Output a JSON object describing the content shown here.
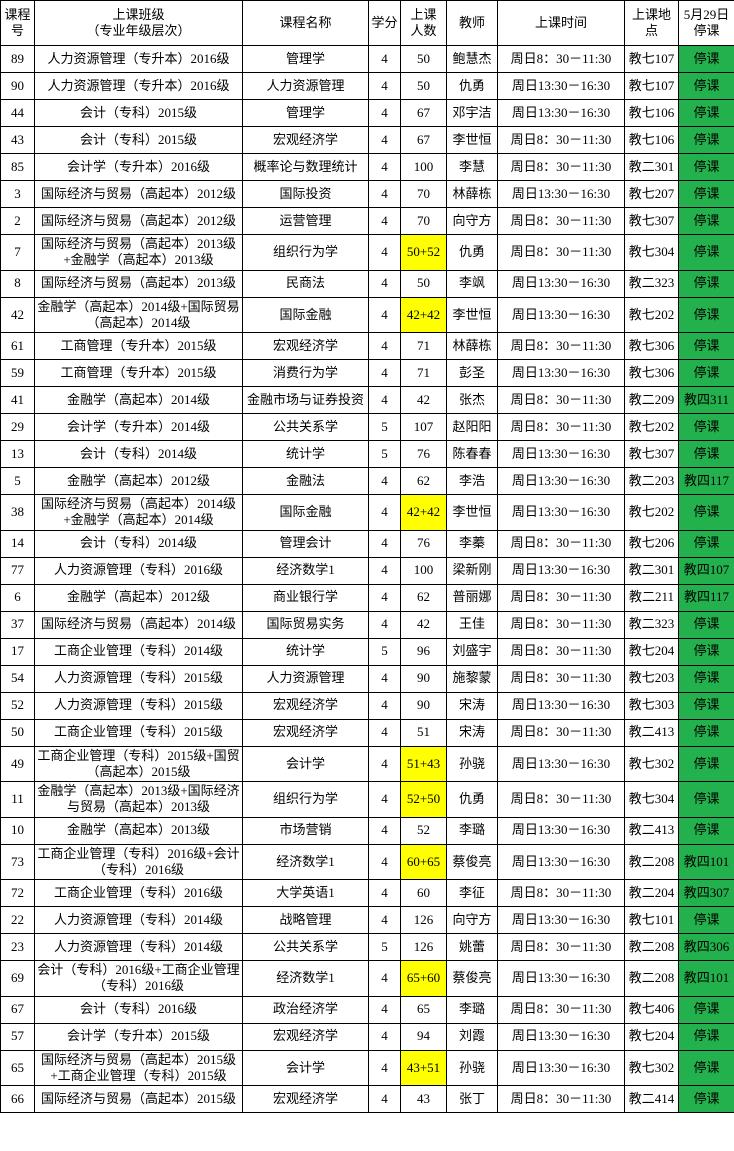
{
  "colors": {
    "suspend_green": "#22b14c",
    "highlight_yellow": "#ffff00",
    "border": "#000000"
  },
  "table": {
    "headers": [
      "课程\n号",
      "上课班级\n（专业年级层次）",
      "课程名称",
      "学分",
      "上课\n人数",
      "教师",
      "上课时间",
      "上课地\n点",
      "5月29日\n停课"
    ],
    "rows": [
      {
        "course_no": "89",
        "class_name": "人力资源管理（专升本）2016级",
        "course_name": "管理学",
        "credits": "4",
        "students": "50",
        "students_highlight": false,
        "teacher": "鲍慧杰",
        "time": "周日8：30－11:30",
        "location": "教七107",
        "may29": "停课"
      },
      {
        "course_no": "90",
        "class_name": "人力资源管理（专升本）2016级",
        "course_name": "人力资源管理",
        "credits": "4",
        "students": "50",
        "students_highlight": false,
        "teacher": "仇勇",
        "time": "周日13:30－16:30",
        "location": "教七107",
        "may29": "停课"
      },
      {
        "course_no": "44",
        "class_name": "会计（专科）2015级",
        "course_name": "管理学",
        "credits": "4",
        "students": "67",
        "students_highlight": false,
        "teacher": "邓宇洁",
        "time": "周日13:30－16:30",
        "location": "教七106",
        "may29": "停课"
      },
      {
        "course_no": "43",
        "class_name": "会计（专科）2015级",
        "course_name": "宏观经济学",
        "credits": "4",
        "students": "67",
        "students_highlight": false,
        "teacher": "李世恒",
        "time": "周日8：30－11:30",
        "location": "教七106",
        "may29": "停课"
      },
      {
        "course_no": "85",
        "class_name": "会计学（专升本）2016级",
        "course_name": "概率论与数理统计",
        "credits": "4",
        "students": "100",
        "students_highlight": false,
        "teacher": "李慧",
        "time": "周日8：30－11:30",
        "location": "教二301",
        "may29": "停课"
      },
      {
        "course_no": "3",
        "class_name": "国际经济与贸易（高起本）2012级",
        "course_name": "国际投资",
        "credits": "4",
        "students": "70",
        "students_highlight": false,
        "teacher": "林薛栋",
        "time": "周日13:30－16:30",
        "location": "教七207",
        "may29": "停课"
      },
      {
        "course_no": "2",
        "class_name": "国际经济与贸易（高起本）2012级",
        "course_name": "运营管理",
        "credits": "4",
        "students": "70",
        "students_highlight": false,
        "teacher": "向守方",
        "time": "周日8：30－11:30",
        "location": "教七307",
        "may29": "停课"
      },
      {
        "course_no": "7",
        "class_name": "国际经济与贸易（高起本）2013级+金融学（高起本）2013级",
        "course_name": "组织行为学",
        "credits": "4",
        "students": "50+52",
        "students_highlight": true,
        "teacher": "仇勇",
        "time": "周日8：30－11:30",
        "location": "教七304",
        "may29": "停课"
      },
      {
        "course_no": "8",
        "class_name": "国际经济与贸易（高起本）2013级",
        "course_name": "民商法",
        "credits": "4",
        "students": "50",
        "students_highlight": false,
        "teacher": "李飒",
        "time": "周日13:30－16:30",
        "location": "教二323",
        "may29": "停课"
      },
      {
        "course_no": "42",
        "class_name": "金融学（高起本）2014级+国际贸易（高起本）2014级",
        "course_name": "国际金融",
        "credits": "4",
        "students": "42+42",
        "students_highlight": true,
        "teacher": "李世恒",
        "time": "周日13:30－16:30",
        "location": "教七202",
        "may29": "停课"
      },
      {
        "course_no": "61",
        "class_name": "工商管理（专升本）2015级",
        "course_name": "宏观经济学",
        "credits": "4",
        "students": "71",
        "students_highlight": false,
        "teacher": "林薛栋",
        "time": "周日8：30－11:30",
        "location": "教七306",
        "may29": "停课"
      },
      {
        "course_no": "59",
        "class_name": "工商管理（专升本）2015级",
        "course_name": "消费行为学",
        "credits": "4",
        "students": "71",
        "students_highlight": false,
        "teacher": "彭圣",
        "time": "周日13:30－16:30",
        "location": "教七306",
        "may29": "停课"
      },
      {
        "course_no": "41",
        "class_name": "金融学（高起本）2014级",
        "course_name": "金融市场与证券投资",
        "credits": "4",
        "students": "42",
        "students_highlight": false,
        "teacher": "张杰",
        "time": "周日8：30－11:30",
        "location": "教二209",
        "may29": "教四311"
      },
      {
        "course_no": "29",
        "class_name": "会计学（专升本）2014级",
        "course_name": "公共关系学",
        "credits": "5",
        "students": "107",
        "students_highlight": false,
        "teacher": "赵阳阳",
        "time": "周日8：30－11:30",
        "location": "教七202",
        "may29": "停课"
      },
      {
        "course_no": "13",
        "class_name": "会计（专科）2014级",
        "course_name": "统计学",
        "credits": "5",
        "students": "76",
        "students_highlight": false,
        "teacher": "陈春春",
        "time": "周日13:30－16:30",
        "location": "教七307",
        "may29": "停课"
      },
      {
        "course_no": "5",
        "class_name": "金融学（高起本）2012级",
        "course_name": "金融法",
        "credits": "4",
        "students": "62",
        "students_highlight": false,
        "teacher": "李浩",
        "time": "周日13:30－16:30",
        "location": "教二203",
        "may29": "教四117"
      },
      {
        "course_no": "38",
        "class_name": "国际经济与贸易（高起本）2014级+金融学（高起本）2014级",
        "course_name": "国际金融",
        "credits": "4",
        "students": "42+42",
        "students_highlight": true,
        "teacher": "李世恒",
        "time": "周日13:30－16:30",
        "location": "教七202",
        "may29": "停课"
      },
      {
        "course_no": "14",
        "class_name": "会计（专科）2014级",
        "course_name": "管理会计",
        "credits": "4",
        "students": "76",
        "students_highlight": false,
        "teacher": "李蓁",
        "time": "周日8：30－11:30",
        "location": "教七206",
        "may29": "停课"
      },
      {
        "course_no": "77",
        "class_name": "人力资源管理（专科）2016级",
        "course_name": "经济数学1",
        "credits": "4",
        "students": "100",
        "students_highlight": false,
        "teacher": "梁新刚",
        "time": "周日13:30－16:30",
        "location": "教二301",
        "may29": "教四107"
      },
      {
        "course_no": "6",
        "class_name": "金融学（高起本）2012级",
        "course_name": "商业银行学",
        "credits": "4",
        "students": "62",
        "students_highlight": false,
        "teacher": "普丽娜",
        "time": "周日8：30－11:30",
        "location": "教二211",
        "may29": "教四117"
      },
      {
        "course_no": "37",
        "class_name": "国际经济与贸易（高起本）2014级",
        "course_name": "国际贸易实务",
        "credits": "4",
        "students": "42",
        "students_highlight": false,
        "teacher": "王佳",
        "time": "周日8：30－11:30",
        "location": "教二323",
        "may29": "停课"
      },
      {
        "course_no": "17",
        "class_name": "工商企业管理（专科）2014级",
        "course_name": "统计学",
        "credits": "5",
        "students": "96",
        "students_highlight": false,
        "teacher": "刘盛宇",
        "time": "周日8：30－11:30",
        "location": "教七204",
        "may29": "停课"
      },
      {
        "course_no": "54",
        "class_name": "人力资源管理（专科）2015级",
        "course_name": "人力资源管理",
        "credits": "4",
        "students": "90",
        "students_highlight": false,
        "teacher": "施黎蒙",
        "time": "周日8：30－11:30",
        "location": "教七203",
        "may29": "停课"
      },
      {
        "course_no": "52",
        "class_name": "人力资源管理（专科）2015级",
        "course_name": "宏观经济学",
        "credits": "4",
        "students": "90",
        "students_highlight": false,
        "teacher": "宋涛",
        "time": "周日13:30－16:30",
        "location": "教七303",
        "may29": "停课"
      },
      {
        "course_no": "50",
        "class_name": "工商企业管理（专科）2015级",
        "course_name": "宏观经济学",
        "credits": "4",
        "students": "51",
        "students_highlight": false,
        "teacher": "宋涛",
        "time": "周日8：30－11:30",
        "location": "教二413",
        "may29": "停课"
      },
      {
        "course_no": "49",
        "class_name": "工商企业管理（专科）2015级+国贸（高起本）2015级",
        "course_name": "会计学",
        "credits": "4",
        "students": "51+43",
        "students_highlight": true,
        "teacher": "孙骁",
        "time": "周日13:30－16:30",
        "location": "教七302",
        "may29": "停课"
      },
      {
        "course_no": "11",
        "class_name": "金融学（高起本）2013级+国际经济与贸易（高起本）2013级",
        "course_name": "组织行为学",
        "credits": "4",
        "students": "52+50",
        "students_highlight": true,
        "teacher": "仇勇",
        "time": "周日8：30－11:30",
        "location": "教七304",
        "may29": "停课"
      },
      {
        "course_no": "10",
        "class_name": "金融学（高起本）2013级",
        "course_name": "市场营销",
        "credits": "4",
        "students": "52",
        "students_highlight": false,
        "teacher": "李璐",
        "time": "周日13:30－16:30",
        "location": "教二413",
        "may29": "停课"
      },
      {
        "course_no": "73",
        "class_name": "工商企业管理（专科）2016级+会计（专科）2016级",
        "course_name": "经济数学1",
        "credits": "4",
        "students": "60+65",
        "students_highlight": true,
        "teacher": "蔡俊亮",
        "time": "周日13:30－16:30",
        "location": "教二208",
        "may29": "教四101"
      },
      {
        "course_no": "72",
        "class_name": "工商企业管理（专科）2016级",
        "course_name": "大学英语1",
        "credits": "4",
        "students": "60",
        "students_highlight": false,
        "teacher": "李征",
        "time": "周日8：30－11:30",
        "location": "教二204",
        "may29": "教四307"
      },
      {
        "course_no": "22",
        "class_name": "人力资源管理（专科）2014级",
        "course_name": "战略管理",
        "credits": "4",
        "students": "126",
        "students_highlight": false,
        "teacher": "向守方",
        "time": "周日13:30－16:30",
        "location": "教七101",
        "may29": "停课"
      },
      {
        "course_no": "23",
        "class_name": "人力资源管理（专科）2014级",
        "course_name": "公共关系学",
        "credits": "5",
        "students": "126",
        "students_highlight": false,
        "teacher": "姚蕾",
        "time": "周日8：30－11:30",
        "location": "教二208",
        "may29": "教四306"
      },
      {
        "course_no": "69",
        "class_name": "会计（专科）2016级+工商企业管理（专科）2016级",
        "course_name": "经济数学1",
        "credits": "4",
        "students": "65+60",
        "students_highlight": true,
        "teacher": "蔡俊亮",
        "time": "周日13:30－16:30",
        "location": "教二208",
        "may29": "教四101"
      },
      {
        "course_no": "67",
        "class_name": "会计（专科）2016级",
        "course_name": "政治经济学",
        "credits": "4",
        "students": "65",
        "students_highlight": false,
        "teacher": "李璐",
        "time": "周日8：30－11:30",
        "location": "教七406",
        "may29": "停课"
      },
      {
        "course_no": "57",
        "class_name": "会计学（专升本）2015级",
        "course_name": "宏观经济学",
        "credits": "4",
        "students": "94",
        "students_highlight": false,
        "teacher": "刘霞",
        "time": "周日13:30－16:30",
        "location": "教七204",
        "may29": "停课"
      },
      {
        "course_no": "65",
        "class_name": "国际经济与贸易（高起本）2015级+工商企业管理（专科）2015级",
        "course_name": "会计学",
        "credits": "4",
        "students": "43+51",
        "students_highlight": true,
        "teacher": "孙骁",
        "time": "周日13:30－16:30",
        "location": "教七302",
        "may29": "停课"
      },
      {
        "course_no": "66",
        "class_name": "国际经济与贸易（高起本）2015级",
        "course_name": "宏观经济学",
        "credits": "4",
        "students": "43",
        "students_highlight": false,
        "teacher": "张丁",
        "time": "周日8：30－11:30",
        "location": "教二414",
        "may29": "停课"
      }
    ]
  }
}
